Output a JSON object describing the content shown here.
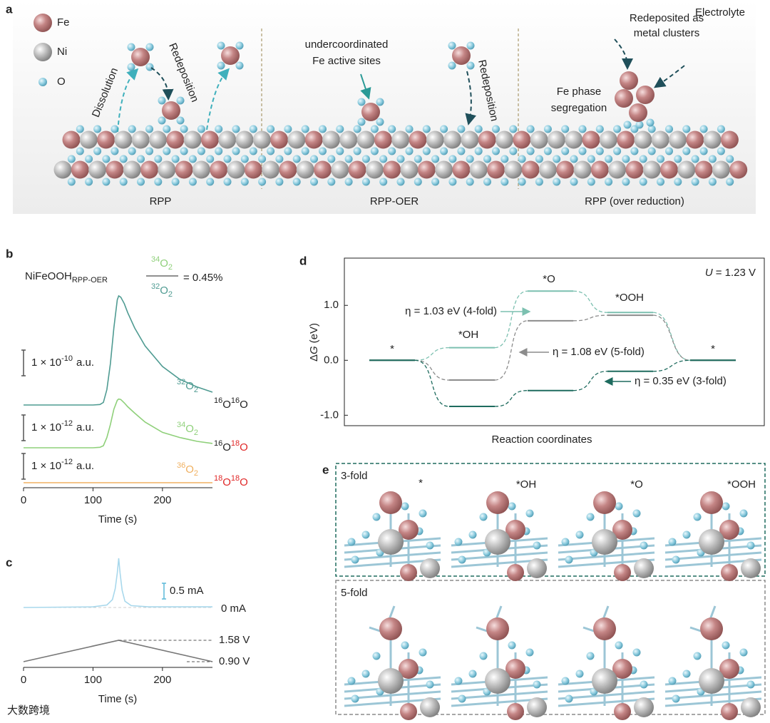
{
  "panel_a": {
    "label": "a",
    "legend": [
      "Fe",
      "Ni",
      "O"
    ],
    "electrolyte": "Electrolyte",
    "dissolution": "Dissolution",
    "redeposition_left": "Redeposition",
    "active_sites": [
      "undercoordinated",
      "Fe active sites"
    ],
    "redeposition_middle": "Redeposition",
    "clusters": [
      "Redeposited as",
      "metal clusters"
    ],
    "segregation": [
      "Fe phase",
      "segregation"
    ],
    "regions": [
      "RPP",
      "RPP-OER",
      "RPP (over reduction)"
    ]
  },
  "chart_data": [
    {
      "type": "stacked_traces",
      "panel_label": "b",
      "title": {
        "base": "NiFeOOH",
        "sub": "RPP-OER"
      },
      "ratio": {
        "numerator": {
          "sup": "34",
          "base": "O",
          "sub": "2"
        },
        "denominator": {
          "sup": "32",
          "base": "O",
          "sub": "2"
        },
        "result": "= 0.45%"
      },
      "x": [
        0,
        100,
        110,
        115,
        120,
        125,
        130,
        135,
        137,
        140,
        145,
        150,
        160,
        175,
        200,
        225,
        250,
        272
      ],
      "xlim": [
        0,
        272
      ],
      "xticks": [
        0,
        100,
        200
      ],
      "xlabel": "Time (s)",
      "series": [
        {
          "label": {
            "sup": "32",
            "base": "O",
            "sub": "2"
          },
          "color": "#4f9b92",
          "species": [
            {
              "text": "16",
              "sup": true,
              "color": "#222222"
            },
            {
              "text": "O",
              "color": "#222222"
            },
            {
              "text": "16",
              "sup": true,
              "color": "#222222"
            },
            {
              "text": "O",
              "color": "#222222"
            }
          ],
          "scale": {
            "base": "1 × 10",
            "exp": "-10",
            "unit": "a.u."
          },
          "values": [
            0,
            0,
            0.02,
            0.1,
            0.6,
            1.6,
            3.0,
            4.1,
            4.25,
            4.2,
            3.95,
            3.6,
            3.0,
            2.3,
            1.5,
            1.0,
            0.7,
            0.5
          ]
        },
        {
          "label": {
            "sup": "34",
            "base": "O",
            "sub": "2"
          },
          "color": "#8fd07a",
          "species": [
            {
              "text": "16",
              "sup": true,
              "color": "#222222"
            },
            {
              "text": "O",
              "color": "#222222"
            },
            {
              "text": "18",
              "sup": true,
              "color": "#e02828"
            },
            {
              "text": "O",
              "color": "#e02828"
            }
          ],
          "scale": {
            "base": "1 × 10",
            "exp": "-12",
            "unit": "a.u."
          },
          "values": [
            0,
            0,
            0.02,
            0.08,
            0.4,
            0.9,
            1.5,
            1.85,
            1.9,
            1.88,
            1.75,
            1.6,
            1.35,
            1.0,
            0.6,
            0.4,
            0.25,
            0.17
          ]
        },
        {
          "label": {
            "sup": "36",
            "base": "O",
            "sub": "2"
          },
          "color": "#f0b060",
          "species": [
            {
              "text": "18",
              "sup": true,
              "color": "#e02828"
            },
            {
              "text": "O",
              "color": "#e02828"
            },
            {
              "text": "18",
              "sup": true,
              "color": "#e02828"
            },
            {
              "text": "O",
              "color": "#e02828"
            }
          ],
          "scale": {
            "base": "1 × 10",
            "exp": "-12",
            "unit": "a.u."
          },
          "values": [
            0,
            0,
            0,
            0,
            0,
            0,
            0,
            0,
            0,
            0,
            0,
            0,
            0,
            0,
            0,
            0,
            0,
            0
          ]
        }
      ]
    },
    {
      "type": "dual_trace",
      "panel_label": "c",
      "xlim": [
        0,
        272
      ],
      "xticks": [
        0,
        100,
        200
      ],
      "xlabel": "Time (s)",
      "current": {
        "color": "#a8d8ec",
        "x": [
          0,
          100,
          120,
          128,
          132,
          135,
          137,
          139,
          142,
          146,
          155,
          180,
          272
        ],
        "values": [
          0,
          0.02,
          0.08,
          0.25,
          0.6,
          1.1,
          1.57,
          1.1,
          0.55,
          0.2,
          0.06,
          0.02,
          0.02
        ],
        "scale": {
          "value": 0.5,
          "label": "0.5 mA"
        },
        "zero": {
          "value": 0,
          "label": "0 mA"
        }
      },
      "potential": {
        "color": "#777777",
        "x": [
          0,
          137,
          272
        ],
        "values": [
          0.9,
          1.58,
          0.9
        ],
        "upper": {
          "value": 1.58,
          "label": "1.58 V"
        },
        "lower": {
          "value": 0.9,
          "label": "0.90 V"
        }
      }
    },
    {
      "type": "energy_levels",
      "panel_label": "d",
      "categories": [
        "*",
        "*OH",
        "*O",
        "*OOH",
        "*"
      ],
      "ylabel": {
        "pre": "Δ",
        "italic": "G",
        "post": "(eV)"
      },
      "xlabel": "Reaction coordinates",
      "condition": {
        "italic": "U",
        "text": "= 1.23 V"
      },
      "ylim": [
        -1.19,
        1.86
      ],
      "yticks": [
        {
          "value": -1,
          "label": "-1.0"
        },
        {
          "value": 0,
          "label": "0.0"
        },
        {
          "value": 1,
          "label": "1.0"
        }
      ],
      "series": [
        {
          "name": "4-fold",
          "color": "#7cc0b0",
          "values": [
            0,
            0.23,
            1.26,
            0.87,
            0
          ],
          "annotation": "η = 1.03 eV (4-fold)"
        },
        {
          "name": "5-fold",
          "color": "#8c8c8c",
          "values": [
            0,
            -0.36,
            0.72,
            0.82,
            0
          ],
          "annotation": "η = 1.08 eV (5-fold)"
        },
        {
          "name": "3-fold",
          "color": "#1e6b5e",
          "values": [
            0,
            -0.84,
            -0.55,
            -0.2,
            0
          ],
          "annotation": "η = 0.35 eV (3-fold)"
        }
      ]
    }
  ],
  "panel_e": {
    "label": "e",
    "groups": [
      {
        "name": "3-fold",
        "states": [
          "*",
          "*OH",
          "*O",
          "*OOH"
        ]
      },
      {
        "name": "5-fold"
      }
    ]
  },
  "watermark": "大数跨境"
}
